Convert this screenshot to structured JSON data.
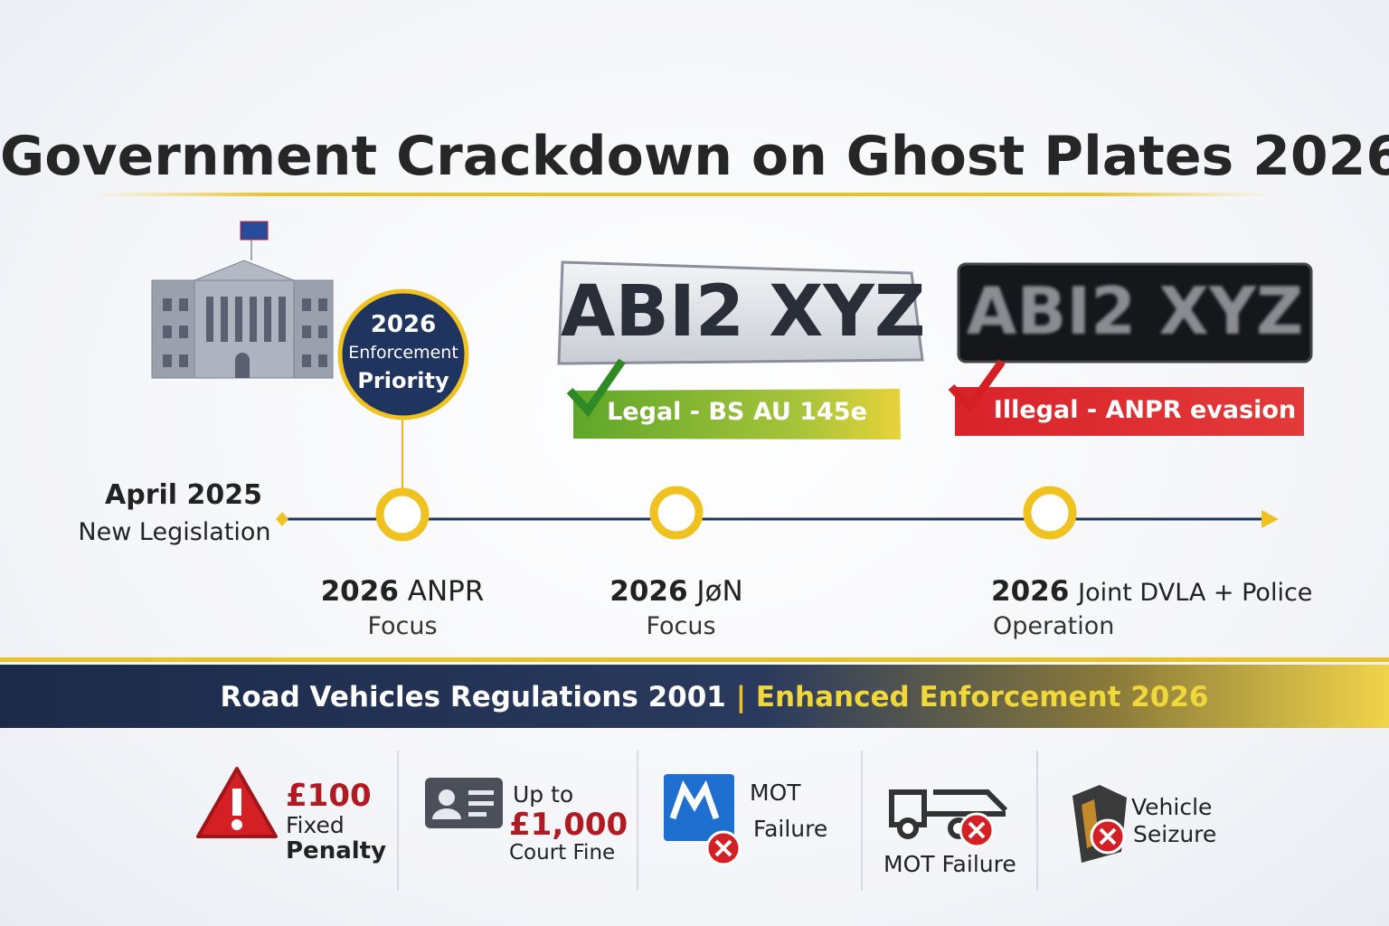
{
  "title": "Government Crackdown on Ghost Plates 2026",
  "badge": {
    "lines": [
      "2026",
      "Enforcement",
      "Priority"
    ]
  },
  "plates": [
    {
      "plate": "ABI2 XYZ",
      "label": "Legal - BS AU 145e"
    },
    {
      "plate": "ABI2 XYZ",
      "label": "Illegal - ANPR evasion"
    }
  ],
  "timeline": {
    "start": {
      "date": "April 2025",
      "label": "New Legislation"
    },
    "milestones": [
      {
        "year": "2026",
        "label": "ANPR",
        "sub": "Focus"
      },
      {
        "year": "2026",
        "label": "JøN",
        "sub": "Focus"
      },
      {
        "year": "2026",
        "label": "Joint DVLA + Police",
        "sub": "Operation"
      }
    ]
  },
  "banner": {
    "left": "Road Vehicles Regulations 2001",
    "separator": "|",
    "right": "Enhanced Enforcement 2026"
  },
  "penalties": [
    [
      "£100",
      "Fixed",
      "Penalty"
    ],
    [
      "Up to",
      "£1,000",
      "Court Fine"
    ],
    [
      "MOT",
      "Failure"
    ],
    [
      "MOT Failure"
    ],
    [
      "Vehicle",
      "Seizure"
    ]
  ]
}
